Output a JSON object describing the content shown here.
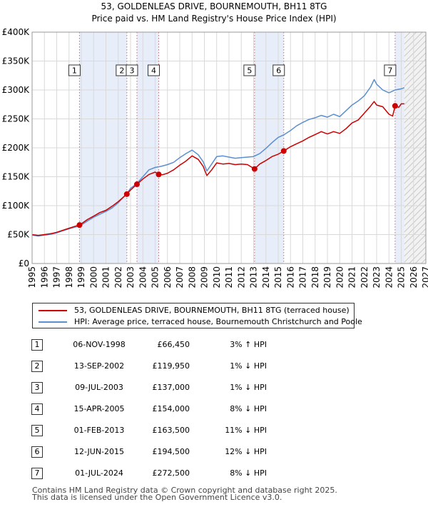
{
  "title": "53, GOLDENLEAS DRIVE, BOURNEMOUTH, BH11 8TG",
  "subtitle": "Price paid vs. HM Land Registry's House Price Index (HPI)",
  "colors": {
    "property": "#cc0000",
    "hpi": "#5a8fd0",
    "shade": "#e8eef9",
    "grid": "#d9d9d9",
    "vline": "#e06060"
  },
  "legend": {
    "property_label": "53, GOLDENLEAS DRIVE, BOURNEMOUTH, BH11 8TG (terraced house)",
    "hpi_label": "HPI: Average price, terraced house, Bournemouth Christchurch and Poole"
  },
  "transactions": [
    {
      "num": "1",
      "date": "06-NOV-1998",
      "price": "£66,450",
      "hpi": "3% ↑ HPI"
    },
    {
      "num": "2",
      "date": "13-SEP-2002",
      "price": "£119,950",
      "hpi": "1% ↓ HPI"
    },
    {
      "num": "3",
      "date": "09-JUL-2003",
      "price": "£137,000",
      "hpi": "1% ↓ HPI"
    },
    {
      "num": "4",
      "date": "15-APR-2005",
      "price": "£154,000",
      "hpi": "8% ↓ HPI"
    },
    {
      "num": "5",
      "date": "01-FEB-2013",
      "price": "£163,500",
      "hpi": "11% ↓ HPI"
    },
    {
      "num": "6",
      "date": "12-JUN-2015",
      "price": "£194,500",
      "hpi": "12% ↓ HPI"
    },
    {
      "num": "7",
      "date": "01-JUL-2024",
      "price": "£272,500",
      "hpi": "8% ↓ HPI"
    }
  ],
  "footer": {
    "line1": "Contains HM Land Registry data © Crown copyright and database right 2025.",
    "line2": "This data is licensed under the Open Government Licence v3.0."
  },
  "chart_data": {
    "type": "line",
    "title": "53, GOLDENLEAS DRIVE, BOURNEMOUTH, BH11 8TG",
    "subtitle": "Price paid vs. HM Land Registry's House Price Index (HPI)",
    "xlabel": "",
    "ylabel": "",
    "xlim": [
      1995,
      2027
    ],
    "ylim": [
      0,
      400000
    ],
    "xticks": [
      1995,
      1996,
      1997,
      1998,
      1999,
      2000,
      2001,
      2002,
      2003,
      2004,
      2005,
      2006,
      2007,
      2008,
      2009,
      2010,
      2011,
      2012,
      2013,
      2014,
      2015,
      2016,
      2017,
      2018,
      2019,
      2020,
      2021,
      2022,
      2023,
      2024,
      2025,
      2026,
      2027
    ],
    "yticks": [
      {
        "value": 0,
        "label": "£0"
      },
      {
        "value": 50000,
        "label": "£50K"
      },
      {
        "value": 100000,
        "label": "£100K"
      },
      {
        "value": 150000,
        "label": "£150K"
      },
      {
        "value": 200000,
        "label": "£200K"
      },
      {
        "value": 250000,
        "label": "£250K"
      },
      {
        "value": 300000,
        "label": "£300K"
      },
      {
        "value": 350000,
        "label": "£350K"
      },
      {
        "value": 400000,
        "label": "£400K"
      }
    ],
    "grid": true,
    "forecast_from": 2025.25,
    "shaded_ranges": [
      [
        1998.85,
        2002.7
      ],
      [
        2003.52,
        2005.29
      ],
      [
        2013.08,
        2015.45
      ],
      [
        2024.5,
        2025.25
      ]
    ],
    "sales": [
      {
        "label": "1",
        "x": 1998.85,
        "y": 66450
      },
      {
        "label": "2",
        "x": 2002.7,
        "y": 119950
      },
      {
        "label": "3",
        "x": 2003.52,
        "y": 137000
      },
      {
        "label": "4",
        "x": 2005.29,
        "y": 154000
      },
      {
        "label": "5",
        "x": 2013.08,
        "y": 163500
      },
      {
        "label": "6",
        "x": 2015.45,
        "y": 194500
      },
      {
        "label": "7",
        "x": 2024.5,
        "y": 272500
      }
    ],
    "series": [
      {
        "name": "53, GOLDENLEAS DRIVE, BOURNEMOUTH, BH11 8TG (terraced house)",
        "x": [
          1995.0,
          1995.5,
          1996.0,
          1996.5,
          1997.0,
          1997.5,
          1998.0,
          1998.5,
          1998.85,
          1999.5,
          2000.0,
          2000.5,
          2001.0,
          2001.5,
          2002.0,
          2002.7,
          2003.0,
          2003.52,
          2004.0,
          2004.5,
          2005.0,
          2005.29,
          2005.6,
          2006.0,
          2006.5,
          2007.0,
          2007.5,
          2008.0,
          2008.5,
          2008.9,
          2009.2,
          2009.6,
          2010.0,
          2010.5,
          2011.0,
          2011.5,
          2012.0,
          2012.5,
          2013.08,
          2013.5,
          2014.0,
          2014.5,
          2015.0,
          2015.45,
          2016.0,
          2016.5,
          2017.0,
          2017.5,
          2018.0,
          2018.5,
          2019.0,
          2019.5,
          2020.0,
          2020.5,
          2021.0,
          2021.5,
          2022.0,
          2022.5,
          2022.8,
          2023.0,
          2023.5,
          2024.0,
          2024.3,
          2024.5,
          2024.8,
          2025.0,
          2025.25
        ],
        "y": [
          50000,
          48500,
          50000,
          51500,
          54000,
          57500,
          61000,
          64500,
          66450,
          76000,
          82000,
          88000,
          92000,
          99000,
          107000,
          119950,
          127000,
          137000,
          146000,
          154000,
          158000,
          154000,
          153500,
          156000,
          162000,
          170000,
          177000,
          186000,
          180000,
          168000,
          152000,
          162000,
          174000,
          172000,
          173000,
          171000,
          172000,
          171000,
          163500,
          172000,
          178000,
          185000,
          189000,
          194500,
          202000,
          207000,
          212000,
          218000,
          223000,
          228000,
          224000,
          228000,
          225000,
          233000,
          243000,
          248000,
          260000,
          272000,
          280000,
          274000,
          271000,
          258000,
          255000,
          272500,
          270000,
          276000,
          276000
        ]
      },
      {
        "name": "HPI: Average price, terraced house, Bournemouth Christchurch and Poole",
        "x": [
          1995.0,
          1995.5,
          1996.0,
          1996.5,
          1997.0,
          1997.5,
          1998.0,
          1998.5,
          1998.85,
          1999.5,
          2000.0,
          2000.5,
          2001.0,
          2001.5,
          2002.0,
          2002.7,
          2003.0,
          2003.5,
          2004.0,
          2004.5,
          2005.0,
          2005.5,
          2006.0,
          2006.5,
          2007.0,
          2007.5,
          2008.0,
          2008.5,
          2008.9,
          2009.2,
          2009.6,
          2010.0,
          2010.5,
          2011.0,
          2011.5,
          2012.0,
          2012.5,
          2013.0,
          2013.5,
          2014.0,
          2014.5,
          2015.0,
          2015.5,
          2016.0,
          2016.5,
          2017.0,
          2017.5,
          2018.0,
          2018.5,
          2019.0,
          2019.5,
          2020.0,
          2020.5,
          2021.0,
          2021.5,
          2022.0,
          2022.5,
          2022.8,
          2023.0,
          2023.5,
          2024.0,
          2024.5,
          2025.0,
          2025.25
        ],
        "y": [
          49000,
          47500,
          49000,
          50500,
          53000,
          56500,
          60000,
          63000,
          64500,
          73500,
          80000,
          85000,
          90000,
          96000,
          105000,
          121000,
          130000,
          138000,
          150000,
          162000,
          166000,
          168000,
          171000,
          175000,
          183000,
          190000,
          196000,
          188000,
          176000,
          160000,
          172000,
          185000,
          186000,
          184000,
          182000,
          183000,
          184000,
          185000,
          190000,
          199000,
          209000,
          218000,
          223000,
          230000,
          238000,
          244000,
          249000,
          252000,
          256000,
          253000,
          258000,
          254000,
          264000,
          274000,
          281000,
          290000,
          305000,
          318000,
          310000,
          300000,
          295000,
          300000,
          302000,
          304000
        ]
      }
    ]
  }
}
